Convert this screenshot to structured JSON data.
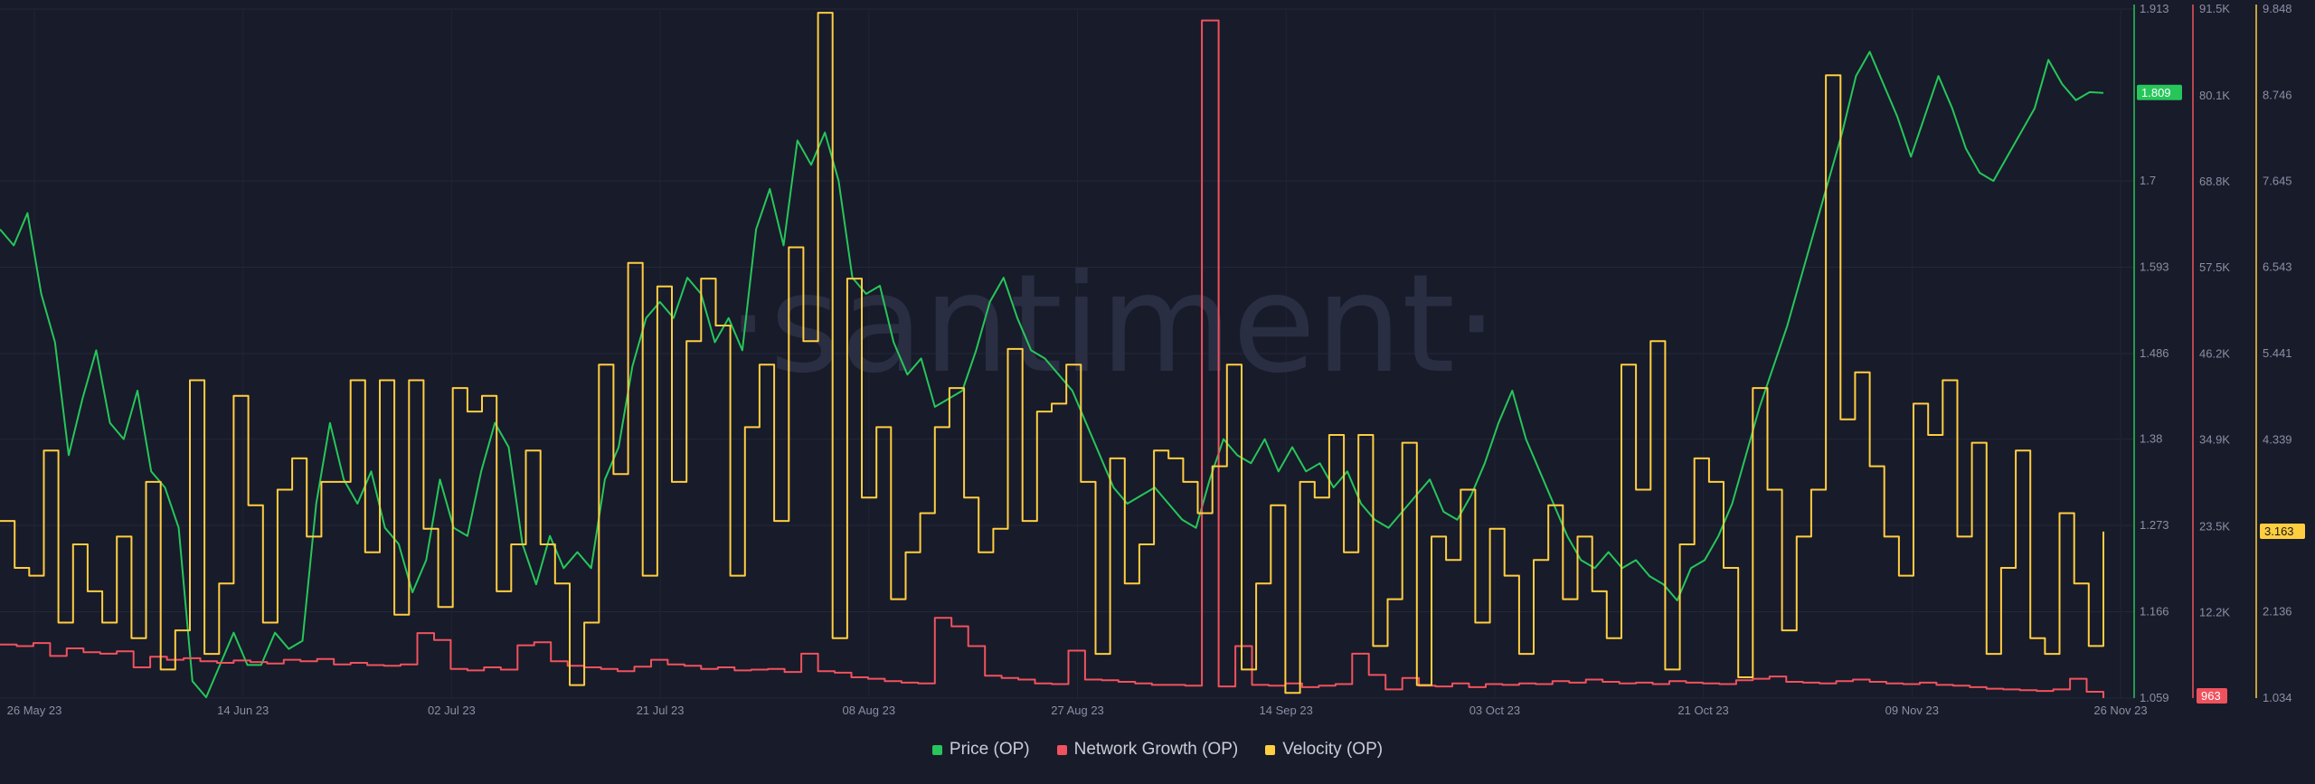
{
  "chart_data": {
    "type": "line",
    "title": "",
    "xlabel": "",
    "x_ticks": [
      "26 May 23",
      "14 Jun 23",
      "02 Jul 23",
      "21 Jul 23",
      "08 Aug 23",
      "27 Aug 23",
      "14 Sep 23",
      "03 Oct 23",
      "21 Oct 23",
      "09 Nov 23",
      "26 Nov 23"
    ],
    "x_range": [
      "2023-05-26",
      "2023-11-26"
    ],
    "watermark": "·santiment·",
    "legend_position": "bottom-center",
    "grid": true,
    "series": [
      {
        "name": "Price (OP)",
        "color": "#26c65a",
        "axis": "left",
        "axis_ticks": [
          "1.913",
          "1.809",
          "1.7",
          "1.593",
          "1.486",
          "1.38",
          "1.273",
          "1.166",
          "1.059"
        ],
        "axis_range": [
          1.059,
          1.913
        ],
        "current_value": "1.809",
        "values": [
          1.64,
          1.62,
          1.66,
          1.56,
          1.5,
          1.36,
          1.43,
          1.49,
          1.4,
          1.38,
          1.44,
          1.34,
          1.32,
          1.27,
          1.08,
          1.06,
          1.1,
          1.14,
          1.1,
          1.1,
          1.14,
          1.12,
          1.13,
          1.3,
          1.4,
          1.33,
          1.3,
          1.34,
          1.27,
          1.25,
          1.19,
          1.23,
          1.33,
          1.27,
          1.26,
          1.34,
          1.4,
          1.37,
          1.25,
          1.2,
          1.26,
          1.22,
          1.24,
          1.22,
          1.33,
          1.37,
          1.47,
          1.53,
          1.55,
          1.53,
          1.58,
          1.56,
          1.5,
          1.53,
          1.49,
          1.64,
          1.69,
          1.62,
          1.75,
          1.72,
          1.76,
          1.7,
          1.58,
          1.56,
          1.57,
          1.5,
          1.46,
          1.48,
          1.42,
          1.43,
          1.44,
          1.49,
          1.55,
          1.58,
          1.53,
          1.49,
          1.48,
          1.46,
          1.44,
          1.4,
          1.36,
          1.32,
          1.3,
          1.31,
          1.32,
          1.3,
          1.28,
          1.27,
          1.33,
          1.38,
          1.36,
          1.35,
          1.38,
          1.34,
          1.37,
          1.34,
          1.35,
          1.32,
          1.34,
          1.3,
          1.28,
          1.27,
          1.29,
          1.31,
          1.33,
          1.29,
          1.28,
          1.31,
          1.35,
          1.4,
          1.44,
          1.38,
          1.34,
          1.3,
          1.26,
          1.23,
          1.22,
          1.24,
          1.22,
          1.23,
          1.21,
          1.2,
          1.18,
          1.22,
          1.23,
          1.26,
          1.3,
          1.36,
          1.42,
          1.47,
          1.52,
          1.58,
          1.64,
          1.7,
          1.76,
          1.83,
          1.86,
          1.82,
          1.78,
          1.73,
          1.78,
          1.83,
          1.79,
          1.74,
          1.71,
          1.7,
          1.73,
          1.76,
          1.79,
          1.85,
          1.82,
          1.8,
          1.81,
          1.809
        ]
      },
      {
        "name": "Network Growth (OP)",
        "color": "#f0525d",
        "axis": "right-1",
        "axis_ticks": [
          "91.5K",
          "80.1K",
          "68.8K",
          "57.5K",
          "46.2K",
          "34.9K",
          "23.5K",
          "12.2K",
          "963"
        ],
        "axis_range": [
          963,
          91500
        ],
        "current_value": "963",
        "values": [
          8000,
          7800,
          8200,
          6500,
          7500,
          7000,
          6800,
          7100,
          5000,
          6400,
          6000,
          6200,
          5800,
          5600,
          5900,
          5700,
          5500,
          6000,
          5800,
          6100,
          5400,
          5600,
          5300,
          5200,
          5400,
          9500,
          8600,
          4800,
          4600,
          5000,
          4700,
          7900,
          8300,
          5800,
          5200,
          5000,
          4800,
          4500,
          5100,
          6000,
          5400,
          5200,
          4800,
          5000,
          4600,
          4700,
          4800,
          4400,
          6800,
          4500,
          4300,
          3700,
          3500,
          3200,
          3000,
          2900,
          11500,
          10400,
          7800,
          3900,
          3600,
          3400,
          2900,
          2800,
          7200,
          3400,
          3300,
          3100,
          2900,
          2700,
          2700,
          2600,
          90000,
          2500,
          7800,
          2700,
          2600,
          2900,
          2400,
          2600,
          2800,
          6800,
          4000,
          2100,
          3600,
          2600,
          2500,
          2900,
          2400,
          2800,
          2700,
          2900,
          2800,
          3200,
          3000,
          3400,
          3100,
          2900,
          3000,
          2800,
          3200,
          3000,
          2900,
          2800,
          3300,
          3500,
          3800,
          3100,
          3000,
          2900,
          3200,
          3400,
          3100,
          2900,
          2800,
          3000,
          2700,
          2600,
          2400,
          2200,
          2100,
          2000,
          1900,
          2100,
          3500,
          1800,
          963
        ]
      },
      {
        "name": "Velocity (OP)",
        "color": "#ffce40",
        "axis": "right-2",
        "axis_ticks": [
          "9.848",
          "8.746",
          "7.645",
          "6.543",
          "5.441",
          "4.339",
          "2.136",
          "1.034"
        ],
        "axis_range": [
          1.034,
          9.848
        ],
        "current_value": "3.163",
        "values": [
          3.3,
          2.7,
          2.6,
          4.2,
          2.0,
          3.0,
          2.4,
          2.0,
          3.1,
          1.8,
          3.8,
          1.4,
          1.9,
          5.1,
          1.6,
          2.5,
          4.9,
          3.5,
          2.0,
          3.7,
          4.1,
          3.1,
          3.8,
          3.8,
          5.1,
          2.9,
          5.1,
          2.1,
          5.1,
          3.2,
          2.2,
          5.0,
          4.7,
          4.9,
          2.4,
          3.0,
          4.2,
          3.0,
          2.5,
          1.2,
          2.0,
          5.3,
          3.9,
          6.6,
          2.6,
          6.3,
          3.8,
          5.6,
          6.4,
          5.8,
          2.6,
          4.5,
          5.3,
          3.3,
          6.8,
          5.6,
          9.8,
          1.8,
          6.4,
          3.6,
          4.5,
          2.3,
          2.9,
          3.4,
          4.5,
          5.0,
          3.6,
          2.9,
          3.2,
          5.5,
          3.3,
          4.7,
          4.8,
          5.3,
          3.8,
          1.6,
          4.1,
          2.5,
          3.0,
          4.2,
          4.1,
          3.8,
          3.4,
          4.0,
          5.3,
          1.4,
          2.5,
          3.5,
          1.1,
          3.8,
          3.6,
          4.4,
          2.9,
          4.4,
          1.7,
          2.3,
          4.3,
          1.2,
          3.1,
          2.8,
          3.7,
          2.0,
          3.2,
          2.6,
          1.6,
          2.8,
          3.5,
          2.3,
          3.1,
          2.4,
          1.8,
          5.3,
          3.7,
          5.6,
          1.4,
          3.0,
          4.1,
          3.8,
          2.7,
          1.3,
          5.0,
          3.7,
          1.9,
          3.1,
          3.7,
          9.0,
          4.6,
          5.2,
          4.0,
          3.1,
          2.6,
          4.8,
          4.4,
          5.1,
          3.1,
          4.3,
          1.6,
          2.7,
          4.2,
          1.8,
          1.6,
          3.4,
          2.5,
          1.7,
          3.163
        ]
      }
    ]
  }
}
